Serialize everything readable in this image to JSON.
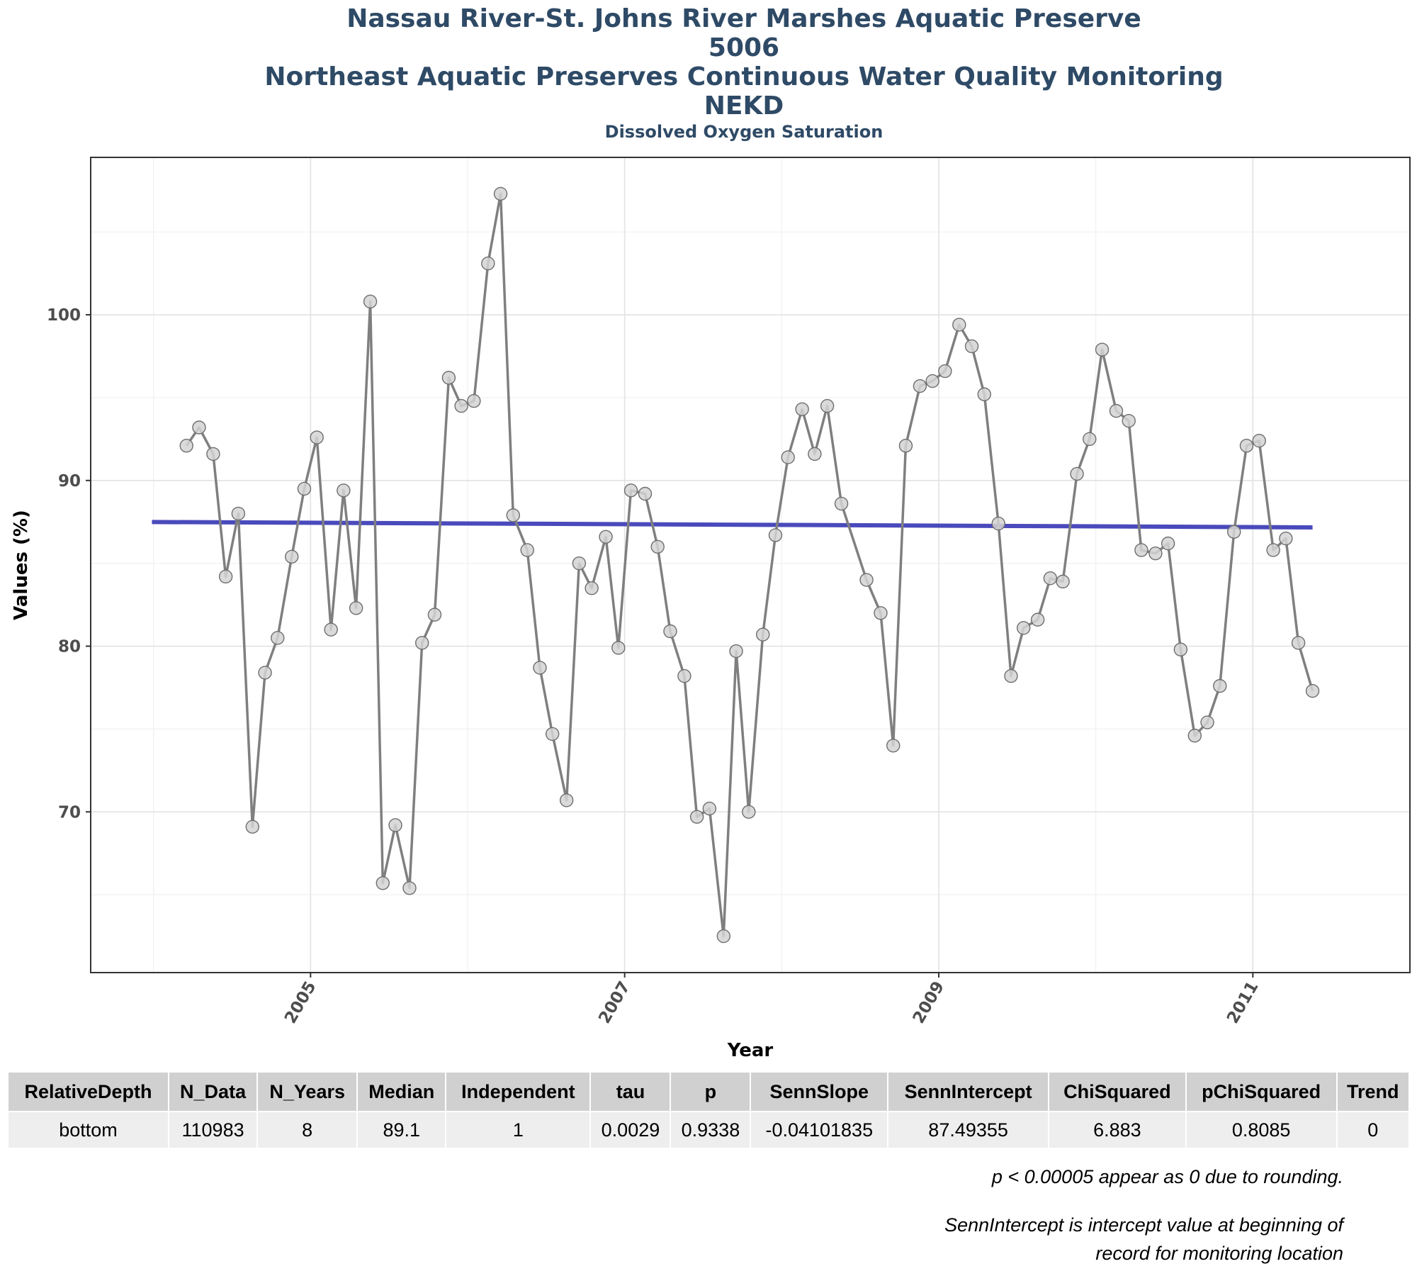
{
  "titles": {
    "line1": "Nassau River-St. Johns River Marshes Aquatic Preserve",
    "line2": "5006",
    "line3": "Northeast Aquatic Preserves Continuous Water Quality Monitoring",
    "line4": "NEKD",
    "subtitle": "Dissolved Oxygen Saturation"
  },
  "chart_data": {
    "type": "line",
    "title": "Nassau River-St. Johns River Marshes Aquatic Preserve",
    "subtitle": "Dissolved Oxygen Saturation",
    "xlabel": "Year",
    "ylabel": "Values (%)",
    "xlim": [
      2003.6,
      2012.0
    ],
    "ylim": [
      60.3,
      109.5
    ],
    "x_ticks": [
      2005,
      2007,
      2009,
      2011
    ],
    "y_ticks": [
      70,
      80,
      90,
      100
    ],
    "grid": true,
    "legend": "none",
    "series": [
      {
        "type": "line-with-points",
        "color": "#7f7f7f",
        "marker_fill": "#d3d3d3",
        "x": [
          2004.21,
          2004.29,
          2004.38,
          2004.46,
          2004.54,
          2004.63,
          2004.71,
          2004.79,
          2004.88,
          2004.96,
          2005.04,
          2005.13,
          2005.21,
          2005.29,
          2005.38,
          2005.46,
          2005.54,
          2005.63,
          2005.71,
          2005.79,
          2005.88,
          2005.96,
          2006.04,
          2006.13,
          2006.21,
          2006.29,
          2006.38,
          2006.46,
          2006.54,
          2006.63,
          2006.71,
          2006.79,
          2006.88,
          2006.96,
          2007.04,
          2007.13,
          2007.21,
          2007.29,
          2007.38,
          2007.46,
          2007.54,
          2007.63,
          2007.71,
          2007.79,
          2007.88,
          2007.96,
          2008.04,
          2008.13,
          2008.21,
          2008.29,
          2008.38,
          2008.54,
          2008.63,
          2008.71,
          2008.79,
          2008.88,
          2008.96,
          2009.04,
          2009.13,
          2009.21,
          2009.29,
          2009.38,
          2009.46,
          2009.54,
          2009.63,
          2009.71,
          2009.79,
          2009.88,
          2009.96,
          2010.04,
          2010.13,
          2010.21,
          2010.29,
          2010.38,
          2010.46,
          2010.54,
          2010.63,
          2010.71,
          2010.79,
          2010.88,
          2010.96,
          2011.04,
          2011.13,
          2011.21,
          2011.29,
          2011.38
        ],
        "y": [
          92.1,
          93.2,
          91.6,
          84.2,
          88.0,
          69.1,
          78.4,
          80.5,
          85.4,
          89.5,
          92.6,
          81.0,
          89.4,
          82.3,
          100.8,
          65.7,
          69.2,
          65.4,
          80.2,
          81.9,
          96.2,
          94.5,
          94.8,
          103.1,
          107.3,
          87.9,
          85.8,
          78.7,
          74.7,
          70.7,
          85.0,
          83.5,
          86.6,
          79.9,
          89.4,
          89.2,
          86.0,
          80.9,
          78.2,
          69.7,
          70.2,
          62.5,
          79.7,
          70.0,
          80.7,
          86.7,
          91.4,
          94.3,
          91.6,
          94.5,
          88.6,
          84.0,
          82.0,
          74.0,
          92.1,
          95.7,
          96.0,
          96.6,
          99.4,
          98.1,
          95.2,
          87.4,
          78.2,
          81.1,
          81.6,
          84.1,
          83.9,
          90.4,
          92.5,
          97.9,
          94.2,
          93.6,
          85.8,
          85.6,
          86.2,
          79.8,
          74.6,
          75.4,
          77.6,
          86.9,
          92.1,
          92.4,
          85.8,
          86.5,
          80.2,
          77.3
        ]
      },
      {
        "type": "trend-line",
        "color": "#4040b8",
        "x": [
          2003.99,
          2011.38
        ],
        "y": [
          87.49355,
          87.17
        ]
      }
    ]
  },
  "table": {
    "headers": [
      "RelativeDepth",
      "N_Data",
      "N_Years",
      "Median",
      "Independent",
      "tau",
      "p",
      "SennSlope",
      "SennIntercept",
      "ChiSquared",
      "pChiSquared",
      "Trend"
    ],
    "rows": [
      [
        "bottom",
        "110983",
        "8",
        "89.1",
        "1",
        "0.0029",
        "0.9338",
        "-0.04101835",
        "87.49355",
        "6.883",
        "0.8085",
        "0"
      ]
    ]
  },
  "notes": {
    "note1": "p < 0.00005 appear as 0 due to rounding.",
    "note2a": "SennIntercept is intercept value at beginning of",
    "note2b": "record for monitoring location"
  }
}
